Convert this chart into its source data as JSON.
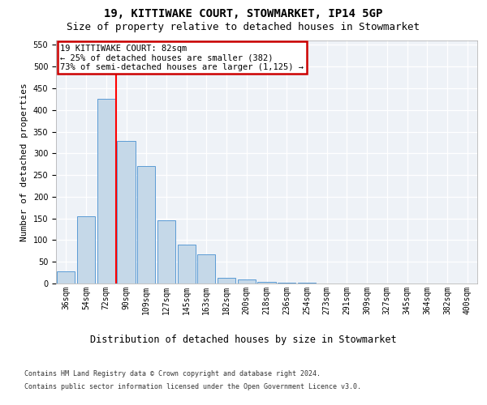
{
  "title1": "19, KITTIWAKE COURT, STOWMARKET, IP14 5GP",
  "title2": "Size of property relative to detached houses in Stowmarket",
  "xlabel": "Distribution of detached houses by size in Stowmarket",
  "ylabel": "Number of detached properties",
  "footer1": "Contains HM Land Registry data © Crown copyright and database right 2024.",
  "footer2": "Contains public sector information licensed under the Open Government Licence v3.0.",
  "categories": [
    "36sqm",
    "54sqm",
    "72sqm",
    "90sqm",
    "109sqm",
    "127sqm",
    "145sqm",
    "163sqm",
    "182sqm",
    "200sqm",
    "218sqm",
    "236sqm",
    "254sqm",
    "273sqm",
    "291sqm",
    "309sqm",
    "327sqm",
    "345sqm",
    "364sqm",
    "382sqm",
    "400sqm"
  ],
  "values": [
    28,
    155,
    425,
    328,
    270,
    145,
    90,
    68,
    13,
    9,
    4,
    1,
    1,
    0,
    0,
    0,
    0,
    0,
    0,
    0,
    0
  ],
  "bar_color": "#c5d8e8",
  "bar_edge_color": "#5b9bd5",
  "red_line_x": 2.5,
  "annotation_title": "19 KITTIWAKE COURT: 82sqm",
  "annotation_line1": "← 25% of detached houses are smaller (382)",
  "annotation_line2": "73% of semi-detached houses are larger (1,125) →",
  "annotation_box_color": "#ffffff",
  "annotation_border_color": "#cc0000",
  "ylim": [
    0,
    560
  ],
  "yticks": [
    0,
    50,
    100,
    150,
    200,
    250,
    300,
    350,
    400,
    450,
    500,
    550
  ],
  "background_color": "#eef2f7",
  "grid_color": "#ffffff",
  "title1_fontsize": 10,
  "title2_fontsize": 9,
  "xlabel_fontsize": 8.5,
  "ylabel_fontsize": 8,
  "tick_fontsize": 7,
  "footer_fontsize": 6,
  "annot_fontsize": 7.5
}
